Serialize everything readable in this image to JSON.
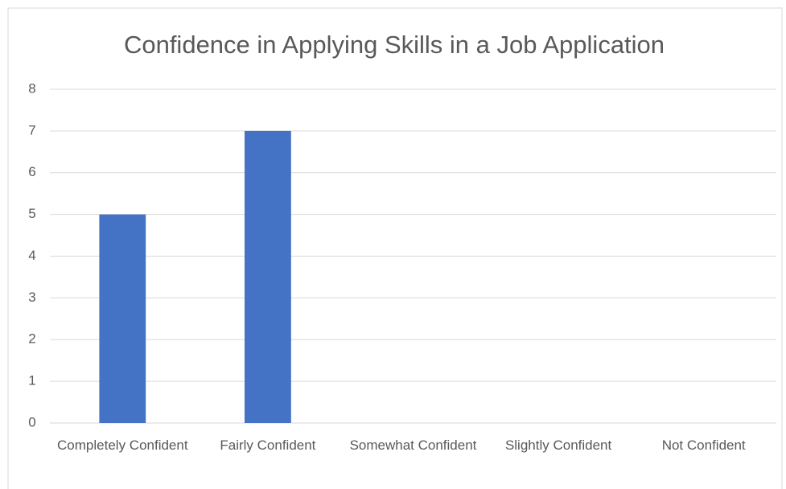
{
  "chart_data": {
    "type": "bar",
    "title": "Confidence in Applying Skills in a Job Application",
    "categories": [
      "Completely Confident",
      "Fairly Confident",
      "Somewhat Confident",
      "Slightly Confident",
      "Not Confident"
    ],
    "values": [
      5,
      7,
      0,
      0,
      0
    ],
    "color": "#4472c4",
    "ylim": [
      0,
      8
    ],
    "yticks": [
      0,
      1,
      2,
      3,
      4,
      5,
      6,
      7,
      8
    ],
    "grid": true
  }
}
